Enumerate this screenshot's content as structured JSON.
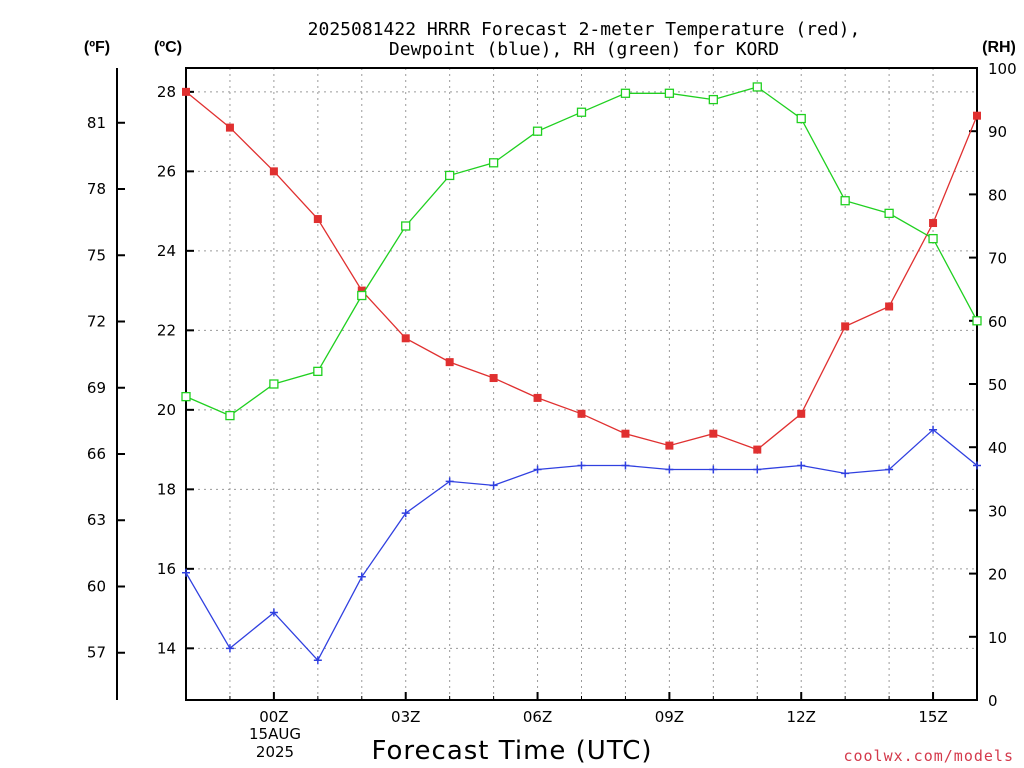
{
  "chart_data": {
    "type": "line",
    "title_line1": "2025081422 HRRR Forecast 2-meter Temperature (red),",
    "title_line2": "Dewpoint (blue), RH (green) for KORD",
    "xlabel": "Forecast Time (UTC)",
    "credit": "coolwx.com/models",
    "units": {
      "fahrenheit": "(ºF)",
      "celsius": "(ºC)",
      "rh": "(RH)"
    },
    "x_hours": [
      -2,
      -1,
      0,
      1,
      2,
      3,
      4,
      5,
      6,
      7,
      8,
      9,
      10,
      11,
      12,
      13,
      14,
      15,
      16
    ],
    "xlim": [
      -2,
      16
    ],
    "x_ticks": [
      {
        "hour": 0,
        "label": "00Z"
      },
      {
        "hour": 3,
        "label": "03Z"
      },
      {
        "hour": 6,
        "label": "06Z"
      },
      {
        "hour": 9,
        "label": "09Z"
      },
      {
        "hour": 12,
        "label": "12Z"
      },
      {
        "hour": 15,
        "label": "15Z"
      }
    ],
    "date_label": {
      "day": "15AUG",
      "year": "2025"
    },
    "celsius_axis": {
      "ylim": [
        12.7,
        28.6
      ],
      "ticks": [
        14,
        16,
        18,
        20,
        22,
        24,
        26,
        28
      ]
    },
    "fahrenheit_ticks": [
      57,
      60,
      63,
      66,
      69,
      72,
      75,
      78,
      81
    ],
    "rh_axis": {
      "ylim": [
        0,
        100
      ],
      "ticks": [
        0,
        10,
        20,
        30,
        40,
        50,
        60,
        70,
        80,
        90,
        100
      ]
    },
    "series": [
      {
        "key": "temperature",
        "axis": "celsius",
        "marker": "filled-square",
        "color": "#e03030",
        "values": [
          28.0,
          27.1,
          26.0,
          24.8,
          23.0,
          21.8,
          21.2,
          20.8,
          20.3,
          19.9,
          19.4,
          19.1,
          19.4,
          19.0,
          19.9,
          22.1,
          22.6,
          24.7,
          27.4
        ]
      },
      {
        "key": "dewpoint",
        "axis": "celsius",
        "marker": "plus",
        "color": "#3040e0",
        "values": [
          15.9,
          14.0,
          14.9,
          13.7,
          15.8,
          17.4,
          18.2,
          18.1,
          18.5,
          18.6,
          18.6,
          18.5,
          18.5,
          18.5,
          18.6,
          18.4,
          18.5,
          19.5,
          18.6
        ]
      },
      {
        "key": "rh",
        "axis": "rh",
        "marker": "open-square",
        "color": "#20d020",
        "values": [
          48,
          45,
          50,
          52,
          64,
          75,
          83,
          85,
          90,
          93,
          96,
          96,
          95,
          97,
          92,
          79,
          77,
          73,
          60
        ]
      }
    ]
  }
}
